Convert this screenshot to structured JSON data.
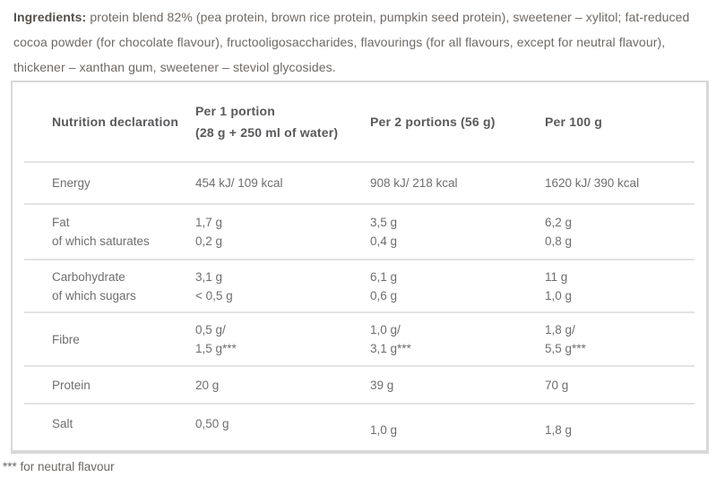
{
  "ingredients": {
    "label": "Ingredients:",
    "text": " protein blend 82% (pea protein, brown rice protein, pumpkin seed protein), sweetener – xylitol; fat-reduced cocoa powder (for chocolate flavour), fructooligosaccharides, flavourings (for all flavours, except for neutral flavour), thickener – xanthan gum, sweetener – steviol glycosides."
  },
  "table": {
    "header": {
      "col1": "Nutrition declaration",
      "col2_line1": "Per 1 portion",
      "col2_line2": "(28 g + 250 ml of water)",
      "col3": "Per 2 portions (56 g)",
      "col4": "Per 100 g"
    },
    "rows": [
      {
        "label1": "Energy",
        "per1_1": "454 kJ/ 109 kcal",
        "per2_1": "908 kJ/ 218 kcal",
        "per100_1": "1620 kJ/ 390 kcal"
      },
      {
        "label1": "Fat",
        "label2": "of which saturates",
        "per1_1": "1,7 g",
        "per1_2": "0,2 g",
        "per2_1": "3,5 g",
        "per2_2": "0,4 g",
        "per100_1": "6,2 g",
        "per100_2": "0,8 g"
      },
      {
        "label1": "Carbohydrate",
        "label2": "of which sugars",
        "per1_1": "3,1 g",
        "per1_2": "< 0,5 g",
        "per2_1": "6,1 g",
        "per2_2": "0,6 g",
        "per100_1": "11 g",
        "per100_2": "1,0 g"
      },
      {
        "label1": "Fibre",
        "per1_1": "0,5 g/",
        "per1_2": "1,5 g***",
        "per2_1": "1,0 g/",
        "per2_2": "3,1 g***",
        "per100_1": "1,8 g/",
        "per100_2": "5,5 g***"
      },
      {
        "label1": "Protein",
        "per1_1": "20 g",
        "per2_1": "39 g",
        "per100_1": "70 g"
      },
      {
        "label1": "Salt",
        "per1_1": "0,50 g",
        "per2_1": "1,0 g",
        "per100_1": "1,8 g"
      }
    ]
  },
  "footnote": "*** for neutral flavour",
  "colors": {
    "paragraph_text": "#6f6964",
    "paragraph_bold_text": "#55504b",
    "table_header_text": "#58595b",
    "table_body_text": "#6d6e70",
    "table_border": "#d9d9d9",
    "row_separator": "#e3e3e3",
    "background": "#ffffff"
  }
}
